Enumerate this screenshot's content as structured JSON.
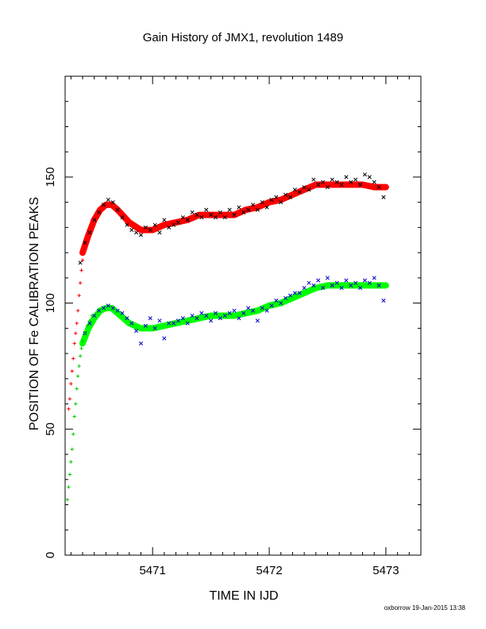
{
  "chart_data": {
    "type": "scatter",
    "title": "Gain History of JMX1, revolution 1489",
    "xlabel": "TIME IN IJD",
    "ylabel": "POSITION OF Fe CALIBRATION PEAKS",
    "xlim": [
      5470.25,
      5473.3
    ],
    "ylim": [
      0,
      190
    ],
    "xticks": [
      5471,
      5472,
      5473
    ],
    "xtick_labels": [
      "5471",
      "5472",
      "5473"
    ],
    "yticks": [
      0,
      50,
      100,
      150
    ],
    "ytick_labels": [
      "0",
      "50",
      "100",
      "150"
    ],
    "grid": false,
    "legend": "none",
    "series": [
      {
        "marker": "x",
        "color": "#000000",
        "x": [
          5470.38,
          5470.42,
          5470.46,
          5470.5,
          5470.54,
          5470.58,
          5470.62,
          5470.66,
          5470.7,
          5470.74,
          5470.78,
          5470.82,
          5470.86,
          5470.9,
          5470.94,
          5470.98,
          5471.02,
          5471.06,
          5471.1,
          5471.14,
          5471.18,
          5471.22,
          5471.26,
          5471.3,
          5471.34,
          5471.38,
          5471.42,
          5471.46,
          5471.5,
          5471.54,
          5471.58,
          5471.62,
          5471.66,
          5471.7,
          5471.74,
          5471.78,
          5471.82,
          5471.86,
          5471.9,
          5471.94,
          5471.98,
          5472.02,
          5472.06,
          5472.1,
          5472.14,
          5472.18,
          5472.22,
          5472.26,
          5472.3,
          5472.34,
          5472.38,
          5472.42,
          5472.46,
          5472.5,
          5472.54,
          5472.58,
          5472.62,
          5472.66,
          5472.7,
          5472.74,
          5472.78,
          5472.82,
          5472.86,
          5472.9,
          5472.94,
          5472.98
        ],
        "y": [
          116,
          124,
          128,
          133,
          136,
          139,
          141,
          140,
          137,
          134,
          131,
          129,
          128,
          127,
          130,
          129,
          131,
          128,
          133,
          130,
          131,
          132,
          134,
          133,
          136,
          135,
          134,
          137,
          135,
          134,
          136,
          134,
          137,
          135,
          138,
          136,
          137,
          139,
          137,
          140,
          138,
          141,
          142,
          140,
          143,
          142,
          145,
          144,
          146,
          145,
          149,
          147,
          148,
          146,
          149,
          148,
          147,
          150,
          148,
          149,
          147,
          151,
          150,
          148,
          146,
          142
        ]
      },
      {
        "marker": "+",
        "color": "#ff0000",
        "x": [
          5470.28,
          5470.29,
          5470.3,
          5470.31,
          5470.32,
          5470.33,
          5470.34,
          5470.35,
          5470.36,
          5470.37,
          5470.38,
          5470.39,
          5470.4,
          5470.42,
          5470.44,
          5470.46,
          5470.48
        ],
        "y": [
          58,
          62,
          68,
          73,
          78,
          84,
          88,
          92,
          97,
          103,
          108,
          113,
          117,
          122,
          126,
          130,
          133
        ]
      },
      {
        "marker": "x",
        "color": "#0000cc",
        "x": [
          5470.42,
          5470.46,
          5470.5,
          5470.54,
          5470.58,
          5470.62,
          5470.66,
          5470.7,
          5470.74,
          5470.78,
          5470.82,
          5470.86,
          5470.9,
          5470.94,
          5470.98,
          5471.02,
          5471.06,
          5471.1,
          5471.14,
          5471.18,
          5471.22,
          5471.26,
          5471.3,
          5471.34,
          5471.38,
          5471.42,
          5471.46,
          5471.5,
          5471.54,
          5471.58,
          5471.62,
          5471.66,
          5471.7,
          5471.74,
          5471.78,
          5471.82,
          5471.86,
          5471.9,
          5471.94,
          5471.98,
          5472.02,
          5472.06,
          5472.1,
          5472.14,
          5472.18,
          5472.22,
          5472.26,
          5472.3,
          5472.34,
          5472.38,
          5472.42,
          5472.46,
          5472.5,
          5472.54,
          5472.58,
          5472.62,
          5472.66,
          5472.7,
          5472.74,
          5472.78,
          5472.82,
          5472.86,
          5472.9,
          5472.94,
          5472.98
        ],
        "y": [
          88,
          92,
          95,
          97,
          98,
          99,
          98,
          97,
          96,
          94,
          92,
          89,
          84,
          91,
          94,
          90,
          93,
          86,
          92,
          92,
          93,
          94,
          92,
          95,
          94,
          96,
          95,
          93,
          96,
          94,
          95,
          96,
          97,
          94,
          96,
          98,
          97,
          93,
          98,
          97,
          99,
          101,
          100,
          102,
          103,
          104,
          104,
          106,
          108,
          107,
          109,
          106,
          110,
          107,
          108,
          106,
          109,
          107,
          108,
          106,
          109,
          108,
          110,
          107,
          101
        ]
      },
      {
        "marker": "+",
        "color": "#00cc00",
        "x": [
          5470.27,
          5470.28,
          5470.29,
          5470.3,
          5470.31,
          5470.32,
          5470.33,
          5470.34,
          5470.35,
          5470.36,
          5470.37,
          5470.38,
          5470.39,
          5470.4,
          5470.42,
          5470.44,
          5470.46,
          5470.48
        ],
        "y": [
          22,
          27,
          32,
          37,
          42,
          48,
          55,
          60,
          66,
          71,
          75,
          79,
          82,
          85,
          88,
          91,
          93,
          95
        ]
      },
      {
        "name": "",
        "color": "#ff0000",
        "style": "thick-line",
        "x": [
          5470.4,
          5470.45,
          5470.5,
          5470.55,
          5470.6,
          5470.65,
          5470.7,
          5470.8,
          5470.9,
          5471.0,
          5471.1,
          5471.2,
          5471.3,
          5471.4,
          5471.5,
          5471.6,
          5471.7,
          5471.8,
          5471.9,
          5472.0,
          5472.1,
          5472.2,
          5472.3,
          5472.4,
          5472.5,
          5472.6,
          5472.7,
          5472.8,
          5472.9,
          5473.0
        ],
        "y": [
          120,
          127,
          133,
          137,
          139,
          139,
          137,
          132,
          129,
          129,
          131,
          132,
          133,
          135,
          135,
          135,
          135,
          137,
          138,
          140,
          141,
          143,
          145,
          147,
          147,
          147,
          147,
          147,
          146,
          146
        ]
      },
      {
        "name": "",
        "color": "#00ff00",
        "style": "thick-line",
        "x": [
          5470.4,
          5470.45,
          5470.5,
          5470.55,
          5470.6,
          5470.65,
          5470.7,
          5470.8,
          5470.9,
          5471.0,
          5471.1,
          5471.2,
          5471.3,
          5471.4,
          5471.5,
          5471.6,
          5471.7,
          5471.8,
          5471.9,
          5472.0,
          5472.1,
          5472.2,
          5472.3,
          5472.4,
          5472.5,
          5472.6,
          5472.7,
          5472.8,
          5472.9,
          5473.0
        ],
        "y": [
          84,
          90,
          94,
          97,
          98,
          98,
          96,
          92,
          90,
          90,
          91,
          92,
          93,
          94,
          95,
          95,
          95,
          96,
          97,
          99,
          100,
          102,
          104,
          106,
          107,
          107,
          107,
          107,
          107,
          107
        ]
      }
    ],
    "footer": "oxborrow 19-Jan-2015 13:38"
  }
}
